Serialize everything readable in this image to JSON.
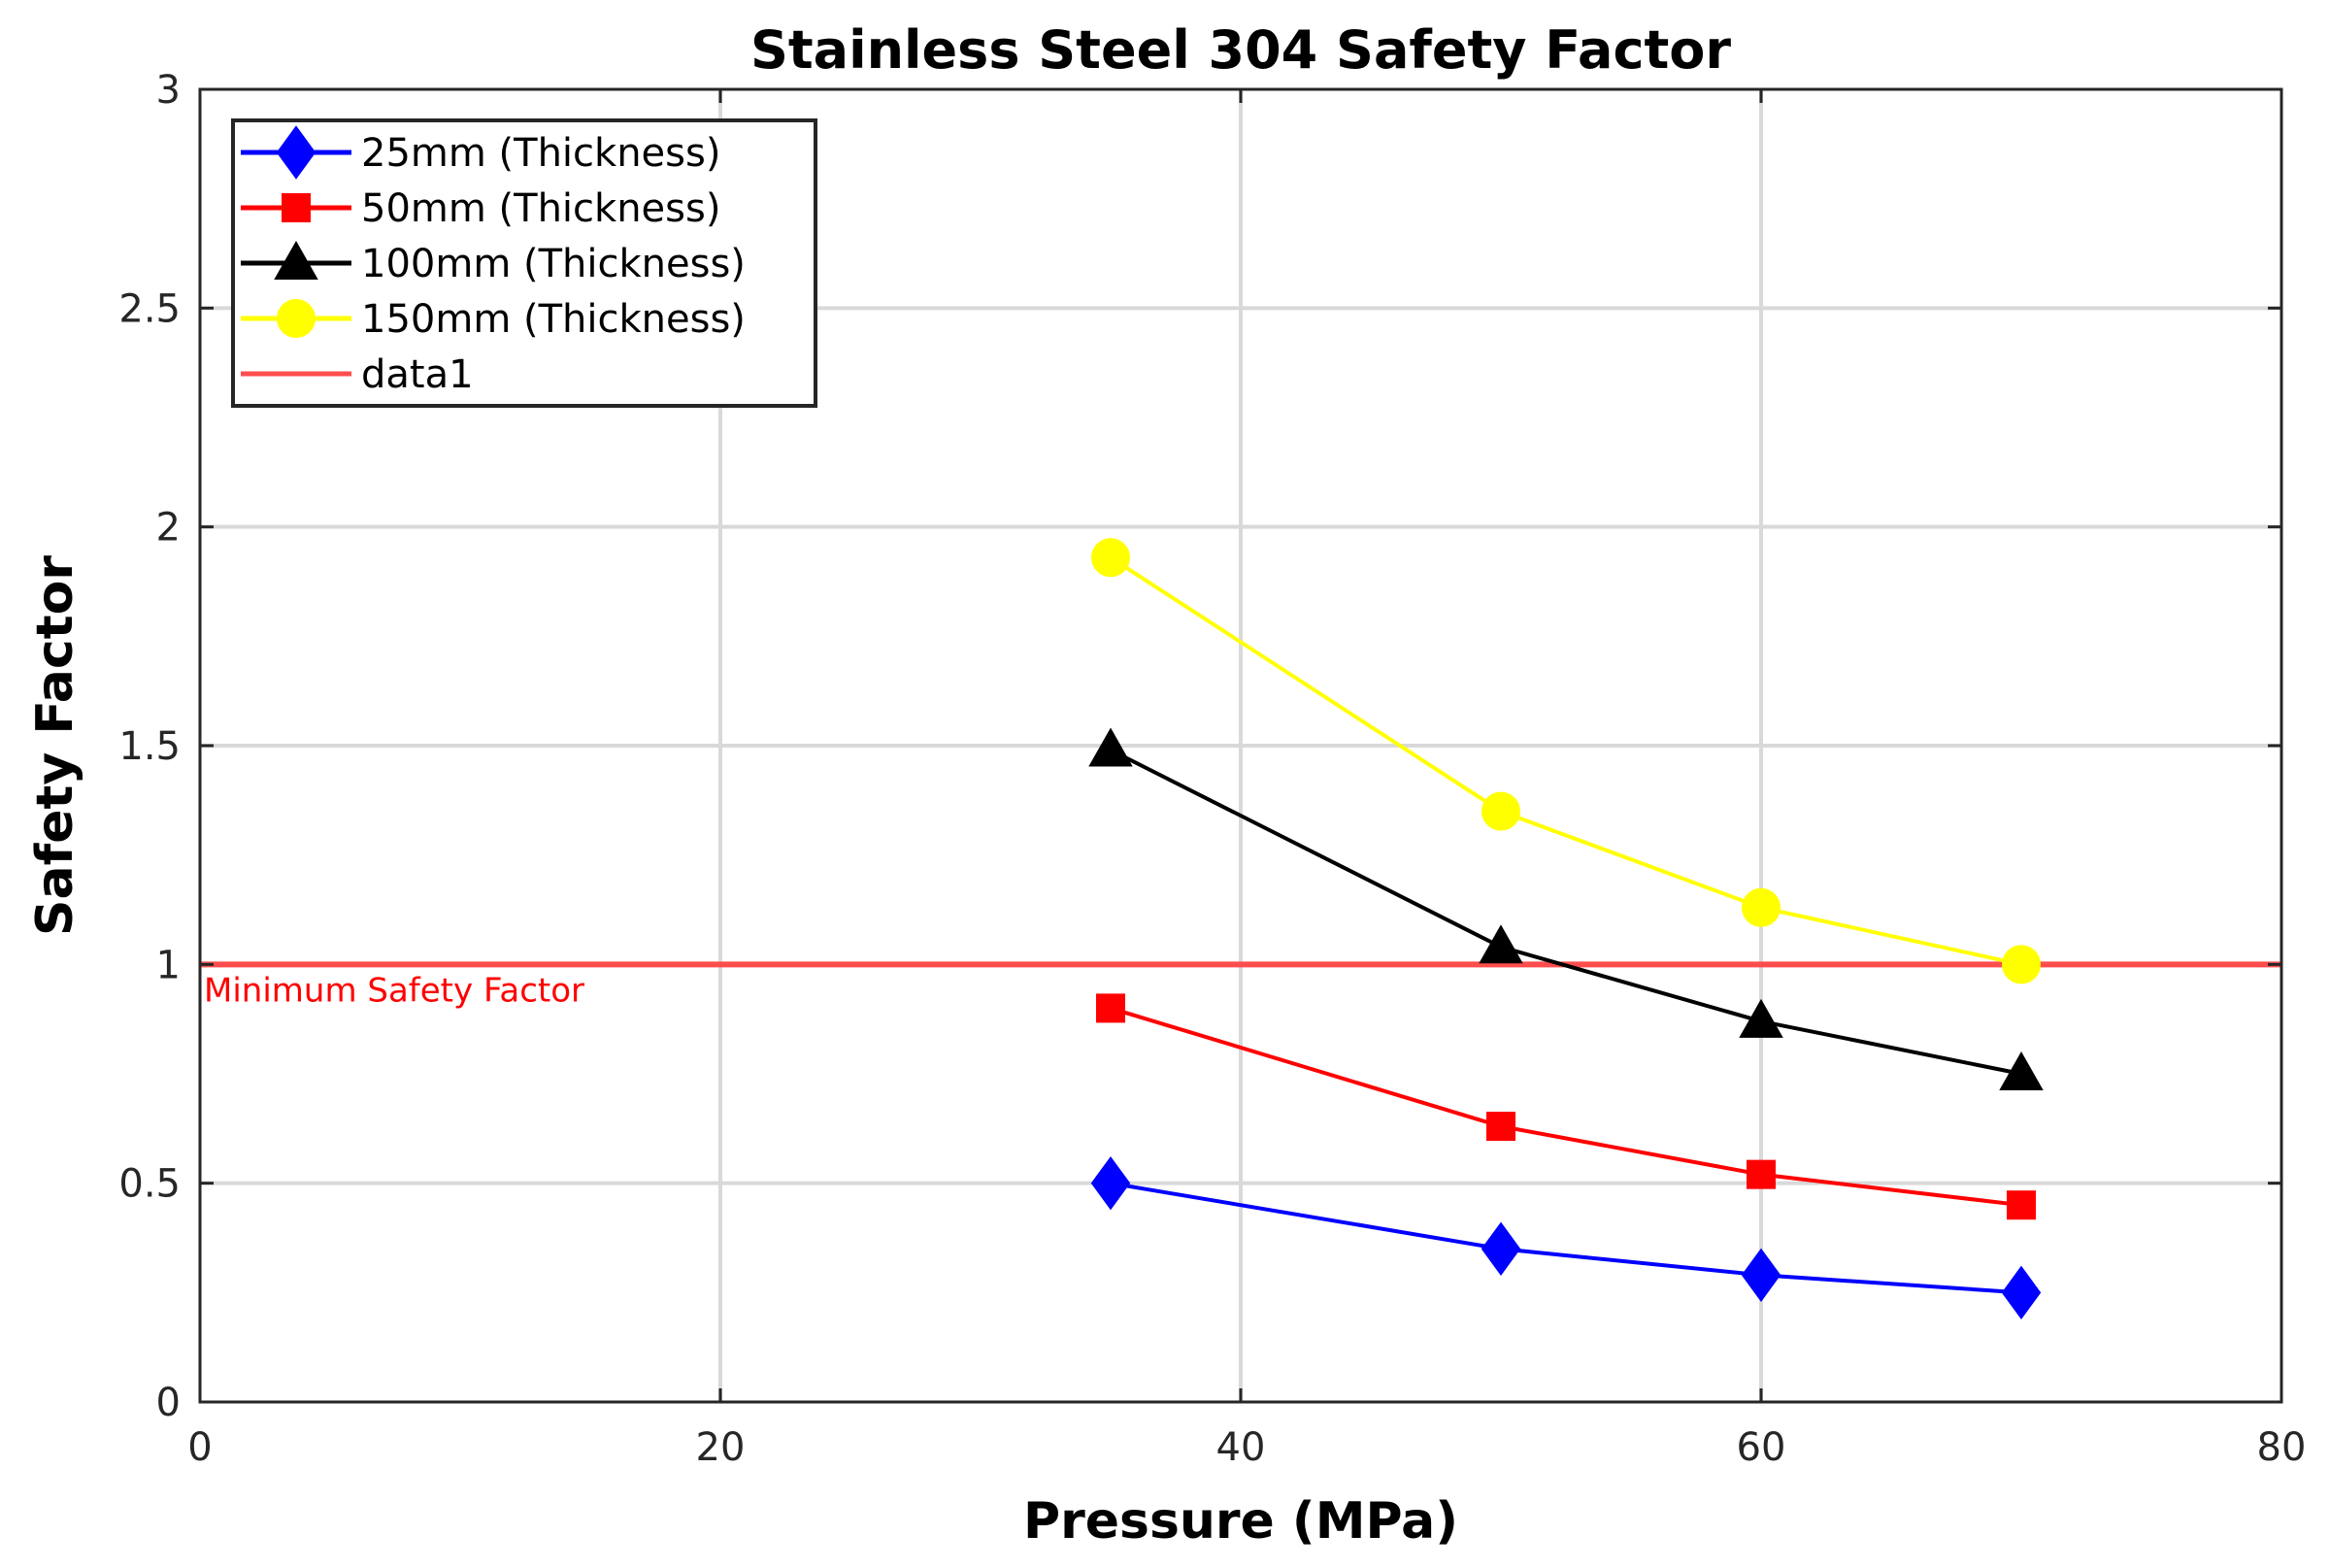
{
  "chart_data": {
    "type": "line",
    "title": "Stainless Steel 304 Safety Factor",
    "xlabel": "Pressure (MPa)",
    "ylabel": "Safety Factor",
    "xlim": [
      0,
      80
    ],
    "ylim": [
      0,
      3
    ],
    "xticks": [
      0,
      20,
      40,
      60,
      80
    ],
    "yticks": [
      0,
      0.5,
      1,
      1.5,
      2,
      2.5,
      3
    ],
    "xtick_labels": [
      "0",
      "20",
      "40",
      "60",
      "80"
    ],
    "ytick_labels": [
      "0",
      "0.5",
      "1",
      "1.5",
      "2",
      "2.5",
      "3"
    ],
    "grid": true,
    "legend_position": "top-left",
    "x": [
      35,
      50,
      60,
      70
    ],
    "series": [
      {
        "name": "25mm (Thickness)",
        "color": "#0000ff",
        "marker": "diamond",
        "values": [
          0.5,
          0.35,
          0.29,
          0.25
        ]
      },
      {
        "name": "50mm (Thickness)",
        "color": "#ff0000",
        "marker": "square",
        "values": [
          0.9,
          0.63,
          0.52,
          0.45
        ]
      },
      {
        "name": "100mm (Thickness)",
        "color": "#000000",
        "marker": "triangle",
        "values": [
          1.49,
          1.04,
          0.87,
          0.75
        ]
      },
      {
        "name": "150mm (Thickness)",
        "color": "#ffff00",
        "marker": "circle",
        "values": [
          1.93,
          1.35,
          1.13,
          1.0
        ]
      }
    ],
    "reference_line": {
      "name": "data1",
      "y": 1,
      "color": "#ff4d4d"
    },
    "annotation": {
      "text": "Minimum Safety Factor",
      "color": "#ff0000"
    }
  }
}
